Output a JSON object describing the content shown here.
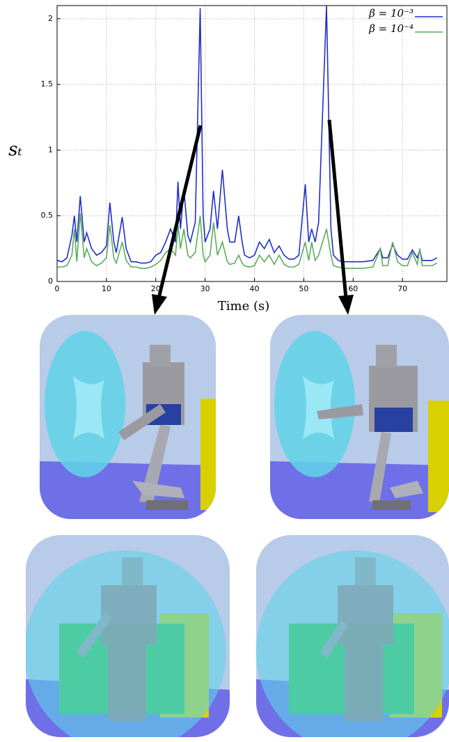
{
  "chart_data": {
    "type": "line",
    "xlabel": "Time (s)",
    "ylabel": "sₜ",
    "x": [
      0,
      1,
      2,
      3,
      3.5,
      4,
      4.7,
      5.5,
      6,
      7,
      8,
      9,
      10,
      10.7,
      11.5,
      12,
      13.2,
      14,
      15,
      16,
      17,
      18,
      19,
      20,
      21,
      22,
      23,
      24,
      24.5,
      25,
      25.7,
      26.5,
      27,
      28,
      29,
      29.6,
      30,
      31,
      31.7,
      32.5,
      33.5,
      34.5,
      35,
      36,
      36.8,
      37.5,
      38,
      39,
      40,
      41,
      42,
      43,
      44,
      45,
      46,
      47,
      48,
      49,
      50.3,
      51,
      51.6,
      52.3,
      53,
      54.6,
      55.5,
      56,
      57,
      58,
      60,
      62,
      64,
      65.5,
      66,
      67,
      68,
      69,
      70,
      71,
      72,
      73,
      73.5,
      74,
      76,
      77
    ],
    "series": [
      {
        "name": "β = 10⁻³",
        "color": "#1f2fc8",
        "values": [
          0.16,
          0.15,
          0.18,
          0.35,
          0.5,
          0.3,
          0.65,
          0.3,
          0.37,
          0.25,
          0.2,
          0.22,
          0.27,
          0.6,
          0.3,
          0.22,
          0.49,
          0.25,
          0.15,
          0.15,
          0.14,
          0.14,
          0.15,
          0.2,
          0.22,
          0.3,
          0.4,
          0.3,
          0.76,
          0.4,
          0.7,
          0.35,
          0.3,
          0.45,
          2.08,
          0.5,
          0.3,
          0.4,
          0.69,
          0.4,
          0.85,
          0.4,
          0.3,
          0.3,
          0.5,
          0.3,
          0.2,
          0.18,
          0.2,
          0.3,
          0.25,
          0.32,
          0.22,
          0.27,
          0.2,
          0.17,
          0.17,
          0.2,
          0.74,
          0.3,
          0.4,
          0.3,
          0.45,
          2.1,
          0.4,
          0.2,
          0.16,
          0.15,
          0.15,
          0.15,
          0.16,
          0.25,
          0.18,
          0.18,
          0.28,
          0.2,
          0.17,
          0.17,
          0.24,
          0.18,
          0.24,
          0.16,
          0.16,
          0.18
        ]
      },
      {
        "name": "β = 10⁻⁴",
        "color": "#5aad5a",
        "values": [
          0.11,
          0.11,
          0.12,
          0.2,
          0.4,
          0.15,
          0.52,
          0.18,
          0.25,
          0.15,
          0.12,
          0.14,
          0.18,
          0.43,
          0.18,
          0.14,
          0.3,
          0.16,
          0.11,
          0.11,
          0.1,
          0.1,
          0.11,
          0.13,
          0.16,
          0.22,
          0.25,
          0.2,
          0.43,
          0.25,
          0.4,
          0.2,
          0.18,
          0.22,
          0.5,
          0.2,
          0.15,
          0.2,
          0.45,
          0.2,
          0.3,
          0.15,
          0.13,
          0.14,
          0.2,
          0.14,
          0.12,
          0.11,
          0.12,
          0.2,
          0.15,
          0.2,
          0.13,
          0.2,
          0.13,
          0.11,
          0.11,
          0.13,
          0.3,
          0.16,
          0.3,
          0.16,
          0.2,
          0.4,
          0.2,
          0.12,
          0.11,
          0.1,
          0.1,
          0.1,
          0.11,
          0.25,
          0.12,
          0.12,
          0.3,
          0.15,
          0.12,
          0.12,
          0.22,
          0.13,
          0.25,
          0.12,
          0.12,
          0.14
        ]
      }
    ],
    "xlim": [
      0,
      79
    ],
    "xticks": [
      0,
      10,
      20,
      30,
      40,
      50,
      60,
      70
    ],
    "ylim": [
      0,
      2.1
    ],
    "yticks": [
      0,
      0.5,
      1,
      1.5,
      2
    ],
    "grid": true,
    "legend": "upper right"
  }
}
